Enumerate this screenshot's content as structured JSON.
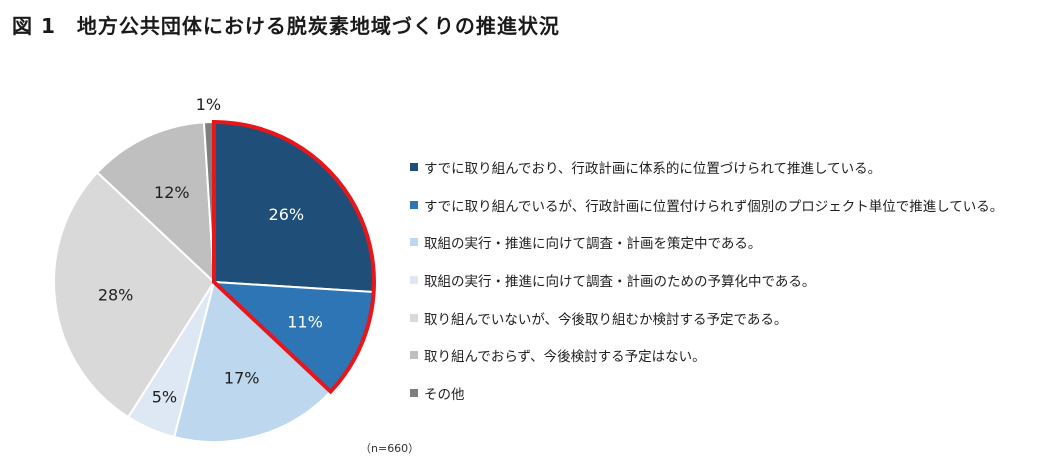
{
  "title": "図 1　地方公共団体における脱炭素地域づくりの推進状況",
  "note": "（n=660）",
  "colors": {
    "highlight_border": "#e8161b",
    "slice_border": "#ffffff",
    "label_light": "#ffffff",
    "label_dark": "#1f1f1f"
  },
  "chart_data": {
    "type": "pie",
    "title": "図 1　地方公共団体における脱炭素地域づくりの推進状況",
    "sample_size": "n=660",
    "start_angle_deg": 0,
    "direction": "clockwise",
    "highlighted_slices": [
      0,
      1
    ],
    "slices": [
      {
        "label": "すでに取り組んでおり、行政計画に体系的に位置づけられて推進している。",
        "value": 26,
        "display": "26%",
        "color": "#1f4e79",
        "label_color": "#ffffff"
      },
      {
        "label": "すでに取り組んでいるが、行政計画に位置付けられず個別のプロジェクト単位で推進している。",
        "value": 11,
        "display": "11%",
        "color": "#2e75b6",
        "label_color": "#ffffff"
      },
      {
        "label": "取組の実行・推進に向けて調査・計画を策定中である。",
        "value": 17,
        "display": "17%",
        "color": "#bdd7ee",
        "label_color": "#1f1f1f"
      },
      {
        "label": "取組の実行・推進に向けて調査・計画のための予算化中である。",
        "value": 5,
        "display": "5%",
        "color": "#dde8f4",
        "label_color": "#1f1f1f"
      },
      {
        "label": "取り組んでいないが、今後取り組むか検討する予定である。",
        "value": 28,
        "display": "28%",
        "color": "#d9d9d9",
        "label_color": "#1f1f1f"
      },
      {
        "label": "取り組んでおらず、今後検討する予定はない。",
        "value": 12,
        "display": "12%",
        "color": "#bfbfbf",
        "label_color": "#1f1f1f"
      },
      {
        "label": "その他",
        "value": 1,
        "display": "1%",
        "color": "#7f7f7f",
        "label_color": "#1f1f1f"
      }
    ]
  }
}
